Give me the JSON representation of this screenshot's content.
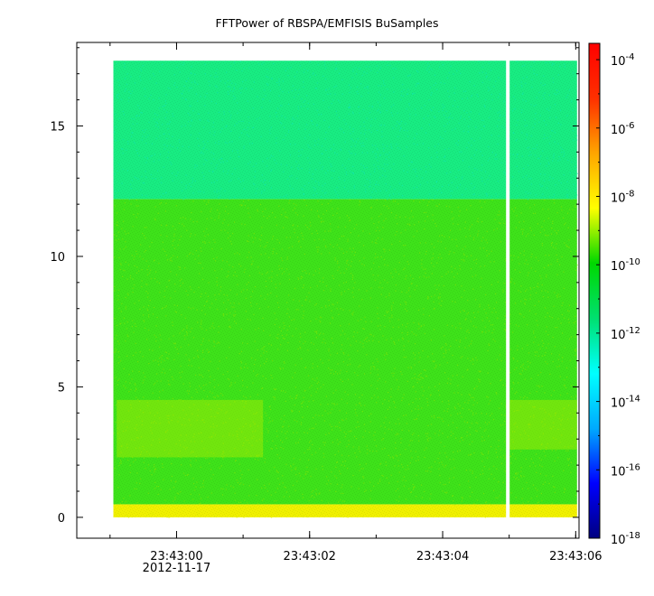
{
  "chart_data": {
    "type": "heatmap",
    "title": "FFTPower of RBSPA/EMFISIS  BuSamples",
    "xlabel": "",
    "ylabel": "",
    "x_ticks": [
      {
        "label": "23:43:00",
        "sublabel": "2012-11-17",
        "seconds": 0
      },
      {
        "label": "23:43:02",
        "sublabel": "",
        "seconds": 2
      },
      {
        "label": "23:43:04",
        "sublabel": "",
        "seconds": 4
      },
      {
        "label": "23:43:06",
        "sublabel": "",
        "seconds": 6
      }
    ],
    "x_minor_step_seconds": 1,
    "xlim_seconds": [
      -1.5,
      6.05
    ],
    "y_ticks": [
      0,
      5,
      10,
      15
    ],
    "ylim": [
      -0.8,
      18.2
    ],
    "data_extent": {
      "t_start": -0.95,
      "t_end": 6.02,
      "f_min": 0,
      "f_max": 17.5
    },
    "gap_seconds": 4.98,
    "bands": [
      {
        "f_min": 0,
        "f_max": 0.5,
        "color": "#f0f000",
        "noise": "#d8ee00"
      },
      {
        "f_min": 0.5,
        "f_max": 12.2,
        "color": "#3ee21a",
        "noise": "#8fe800"
      },
      {
        "f_min": 12.2,
        "f_max": 17.5,
        "color": "#18ec82",
        "noise": "#10e6b8"
      }
    ],
    "patches": [
      {
        "t_start": -0.9,
        "t_end": 1.3,
        "f_min": 2.3,
        "f_max": 4.5,
        "color": "#b0ea00"
      },
      {
        "t_start": 5.0,
        "t_end": 6.02,
        "f_min": 2.6,
        "f_max": 4.5,
        "color": "#b0ea00"
      }
    ],
    "colorbar": {
      "scale": "log",
      "range": [
        1e-18,
        0.0003
      ],
      "tick_exponents": [
        -18,
        -16,
        -14,
        -12,
        -10,
        -8,
        -6,
        -4
      ],
      "base_label": "10",
      "colors": [
        "#000080",
        "#0000ff",
        "#00aaff",
        "#00ffff",
        "#00e070",
        "#00d800",
        "#ffff00",
        "#ffa500",
        "#ff3000",
        "#ff0000"
      ]
    }
  }
}
